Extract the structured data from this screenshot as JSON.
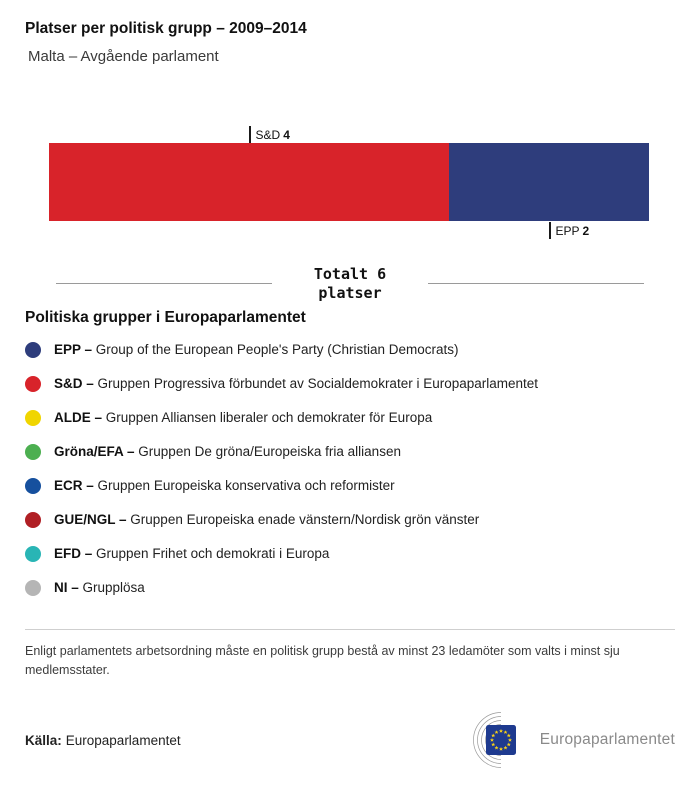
{
  "header": {
    "title": "Platser per politisk grupp – 2009–2014",
    "subtitle": "Malta – Avgående parlament"
  },
  "chart_data": {
    "type": "bar",
    "orientation": "horizontal-stacked",
    "title": "Platser per politisk grupp – 2009–2014",
    "subtitle": "Malta – Avgående parlament",
    "total_seats": 6,
    "series": [
      {
        "name": "S&D",
        "seats": 4,
        "color": "#d8232a",
        "label_position": "above"
      },
      {
        "name": "EPP",
        "seats": 2,
        "color": "#2e3d7c",
        "label_position": "below"
      }
    ]
  },
  "total": {
    "line1": "Totalt 6",
    "line2": "platser"
  },
  "legend": {
    "heading": "Politiska grupper i Europaparlamentet",
    "items": [
      {
        "abbr": "EPP –",
        "desc": "Group of the European People's Party (Christian Democrats)",
        "color": "#2e3d7c"
      },
      {
        "abbr": "S&D –",
        "desc": "Gruppen Progressiva förbundet av Socialdemokrater i Europaparlamentet",
        "color": "#d8232a"
      },
      {
        "abbr": "ALDE –",
        "desc": "Gruppen Alliansen liberaler och demokrater för Europa",
        "color": "#f0d500"
      },
      {
        "abbr": "Gröna/EFA –",
        "desc": "Gruppen De gröna/Europeiska fria alliansen",
        "color": "#4caf50"
      },
      {
        "abbr": "ECR –",
        "desc": "Gruppen Europeiska konservativa och reformister",
        "color": "#16509e"
      },
      {
        "abbr": "GUE/NGL –",
        "desc": "Gruppen Europeiska enade vänstern/Nordisk grön vänster",
        "color": "#b01f24"
      },
      {
        "abbr": "EFD –",
        "desc": "Gruppen Frihet och demokrati i Europa",
        "color": "#29b5b5"
      },
      {
        "abbr": "NI –",
        "desc": "Grupplösa",
        "color": "#b5b5b5"
      }
    ]
  },
  "footnote": "Enligt parlamentets arbetsordning måste en politisk grupp bestå av minst 23 ledamöter som valts i minst sju medlemsstater.",
  "source": {
    "label": "Källa:",
    "value": "Europaparlamentet"
  },
  "logo": {
    "text": "Europaparlamentet"
  }
}
